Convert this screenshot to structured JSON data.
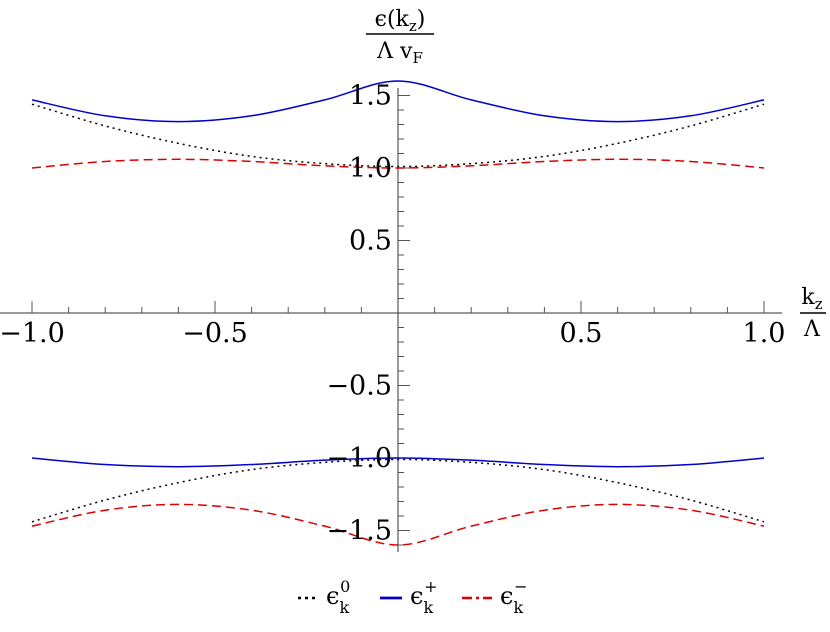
{
  "chart_data": {
    "type": "line",
    "title": "",
    "xlabel": {
      "numerator": "k",
      "numerator_sub": "z",
      "denominator": "Λ"
    },
    "ylabel": {
      "numerator": "ϵ(k",
      "numerator_sub": "z",
      "numerator_close": ")",
      "denominator": "Λ v",
      "denominator_sub": "F"
    },
    "xlim": [
      -1.0,
      1.0
    ],
    "ylim": [
      -1.65,
      1.68
    ],
    "x_ticks": [
      -1.0,
      -0.5,
      0.5,
      1.0
    ],
    "x_tick_labels": [
      "−1.0",
      "−0.5",
      "0.5",
      "1.0"
    ],
    "y_ticks": [
      1.5,
      1.0,
      0.5,
      -0.5,
      -1.0,
      -1.5
    ],
    "y_tick_labels": [
      "1.5",
      "1.0",
      "0.5",
      "−0.5",
      "−1.0",
      "−1.5"
    ],
    "grid": false,
    "legend_position": "bottom-center",
    "series": [
      {
        "name": "ϵ_k^0",
        "legend_label": {
          "base": "ϵ",
          "sub": "k",
          "sup": "0"
        },
        "color": "#000000",
        "dash": "dotted",
        "x": [
          -1.0,
          -0.8,
          -0.6,
          -0.4,
          -0.2,
          0.0,
          0.2,
          0.4,
          0.6,
          0.8,
          1.0
        ],
        "y_upper": [
          1.44,
          1.29,
          1.17,
          1.08,
          1.03,
          1.01,
          1.03,
          1.08,
          1.17,
          1.29,
          1.44
        ],
        "y_lower": [
          -1.44,
          -1.29,
          -1.17,
          -1.08,
          -1.03,
          -1.01,
          -1.03,
          -1.08,
          -1.17,
          -1.29,
          -1.44
        ]
      },
      {
        "name": "ϵ_k^+",
        "legend_label": {
          "base": "ϵ",
          "sub": "k",
          "sup": "+"
        },
        "color": "#0000cc",
        "dash": "solid",
        "x": [
          -1.0,
          -0.8,
          -0.6,
          -0.4,
          -0.2,
          0.0,
          0.2,
          0.4,
          0.6,
          0.8,
          1.0
        ],
        "y_upper": [
          1.47,
          1.36,
          1.32,
          1.36,
          1.47,
          1.6,
          1.47,
          1.36,
          1.32,
          1.36,
          1.47
        ],
        "y_lower": [
          -1.0,
          -1.045,
          -1.06,
          -1.045,
          -1.015,
          -1.0,
          -1.015,
          -1.045,
          -1.06,
          -1.045,
          -1.0
        ]
      },
      {
        "name": "ϵ_k^-",
        "legend_label": {
          "base": "ϵ",
          "sub": "k",
          "sup": "−"
        },
        "color": "#dd0000",
        "dash": "dashed",
        "x": [
          -1.0,
          -0.8,
          -0.6,
          -0.4,
          -0.2,
          0.0,
          0.2,
          0.4,
          0.6,
          0.8,
          1.0
        ],
        "y_upper": [
          1.0,
          1.045,
          1.06,
          1.045,
          1.015,
          1.0,
          1.015,
          1.045,
          1.06,
          1.045,
          1.0
        ],
        "y_lower": [
          -1.47,
          -1.36,
          -1.32,
          -1.36,
          -1.47,
          -1.6,
          -1.47,
          -1.36,
          -1.32,
          -1.36,
          -1.47
        ]
      }
    ]
  }
}
